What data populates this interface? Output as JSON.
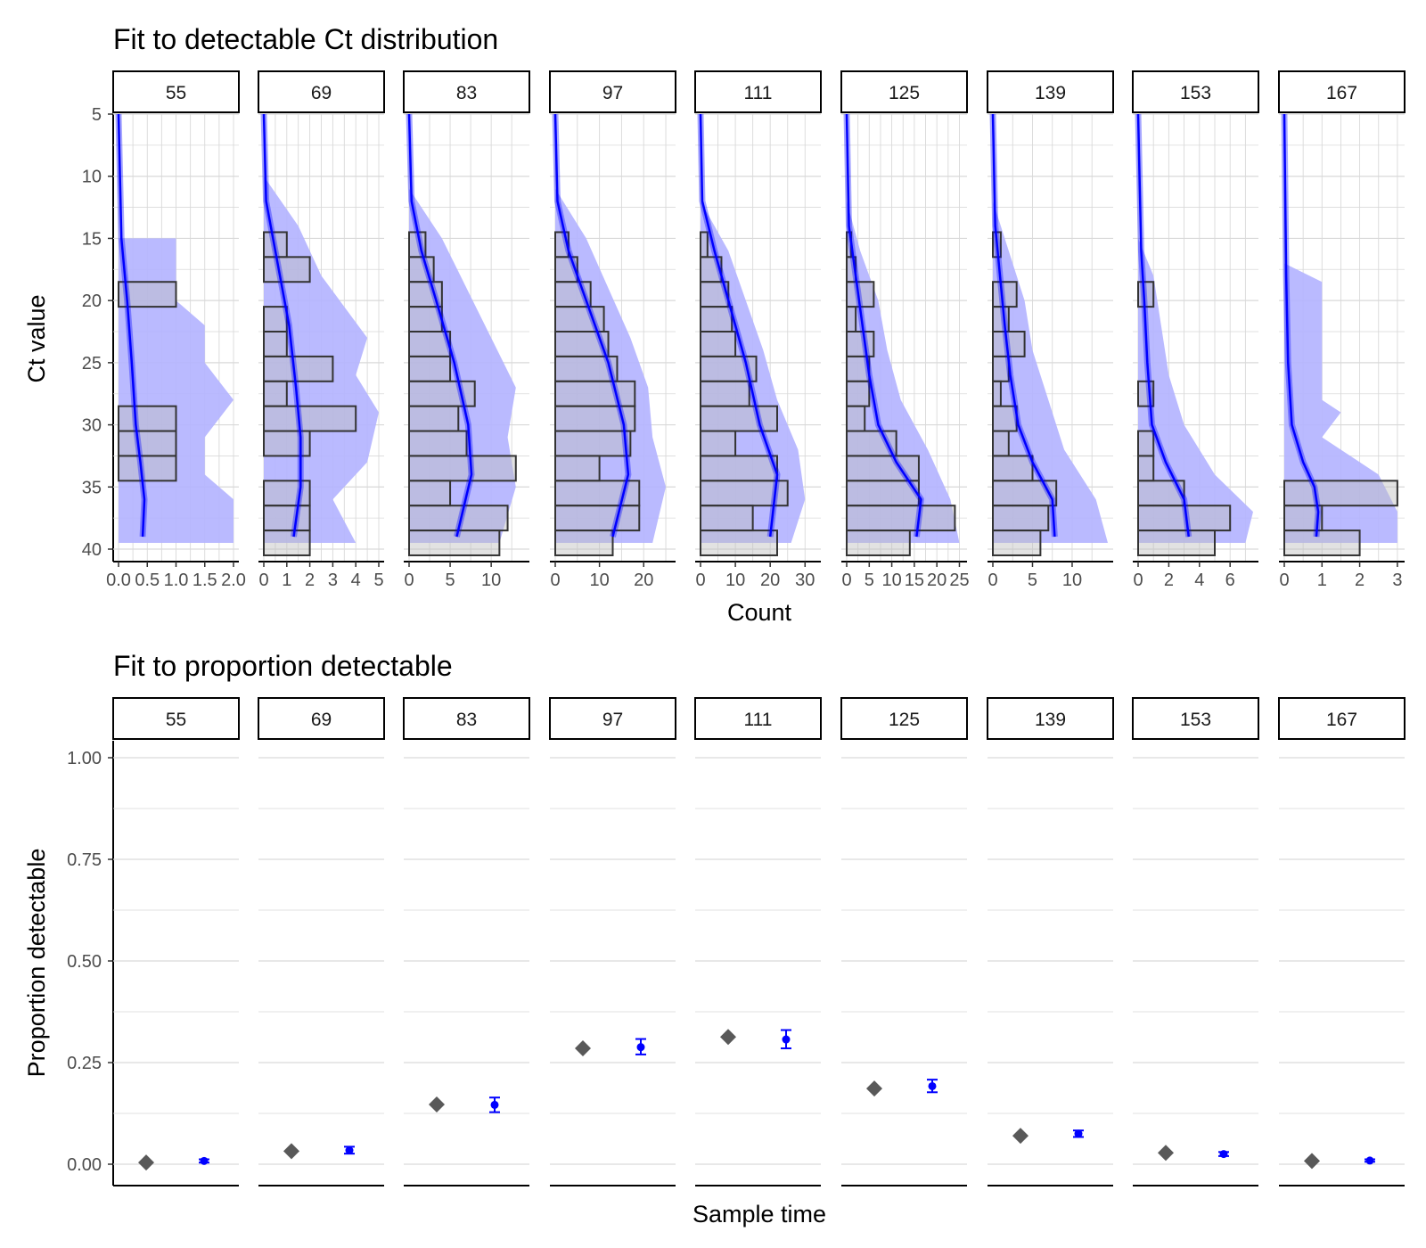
{
  "colors": {
    "fit": "#0000ff",
    "ribbon": "#b3b3ff",
    "hist_fill": "#bebebe",
    "hist_stroke": "#333333",
    "observed": "#595959",
    "grid": "#d9d9d9",
    "axis": "#000000"
  },
  "chart_data": [
    {
      "type": "bar",
      "orientation": "horizontal",
      "title": "Fit to detectable Ct distribution",
      "xlabel": "Count",
      "ylabel": "Ct value",
      "ylim": [
        5,
        40
      ],
      "y_reversed": true,
      "y_ticks": [
        "5",
        "10",
        "15",
        "20",
        "25",
        "30",
        "35",
        "40"
      ],
      "bin_starts": [
        14,
        16,
        18,
        20,
        22,
        24,
        26,
        28,
        30,
        32,
        34,
        36,
        38
      ],
      "facets": [
        {
          "label": "55",
          "xlim": [
            0,
            2
          ],
          "x_ticks": [
            "0.0",
            "0.5",
            "1.0",
            "1.5",
            "2.0"
          ],
          "counts": [
            0,
            0,
            1,
            0,
            0,
            0,
            0,
            1,
            1,
            1,
            0,
            0,
            0
          ],
          "fit": [
            {
              "ct": 5,
              "count": 0
            },
            {
              "ct": 15,
              "count": 0.05
            },
            {
              "ct": 20,
              "count": 0.15
            },
            {
              "ct": 25,
              "count": 0.23
            },
            {
              "ct": 30,
              "count": 0.3
            },
            {
              "ct": 33,
              "count": 0.38
            },
            {
              "ct": 36,
              "count": 0.45
            },
            {
              "ct": 39,
              "count": 0.42
            }
          ],
          "ribbon_upper": [
            {
              "ct": 15,
              "count": 1.0
            },
            {
              "ct": 20,
              "count": 1.0
            },
            {
              "ct": 22,
              "count": 1.5
            },
            {
              "ct": 25,
              "count": 1.5
            },
            {
              "ct": 28,
              "count": 2.0
            },
            {
              "ct": 31,
              "count": 1.5
            },
            {
              "ct": 34,
              "count": 1.5
            },
            {
              "ct": 36,
              "count": 2.0
            },
            {
              "ct": 38,
              "count": 2.0
            },
            {
              "ct": 39.5,
              "count": 2.0
            }
          ]
        },
        {
          "label": "69",
          "xlim": [
            0,
            5
          ],
          "x_ticks": [
            "0",
            "1",
            "2",
            "3",
            "4",
            "5"
          ],
          "counts": [
            1,
            2,
            0,
            1,
            1,
            3,
            1,
            4,
            2,
            0,
            2,
            2,
            2
          ],
          "fit": [
            {
              "ct": 5,
              "count": 0
            },
            {
              "ct": 12,
              "count": 0.1
            },
            {
              "ct": 17,
              "count": 0.6
            },
            {
              "ct": 22,
              "count": 1.1
            },
            {
              "ct": 27,
              "count": 1.4
            },
            {
              "ct": 31,
              "count": 1.6
            },
            {
              "ct": 35,
              "count": 1.6
            },
            {
              "ct": 39,
              "count": 1.3
            }
          ],
          "ribbon_upper": [
            {
              "ct": 10,
              "count": 0
            },
            {
              "ct": 14,
              "count": 1.5
            },
            {
              "ct": 18,
              "count": 2.5
            },
            {
              "ct": 23,
              "count": 4.5
            },
            {
              "ct": 26,
              "count": 4.0
            },
            {
              "ct": 29,
              "count": 5.0
            },
            {
              "ct": 33,
              "count": 4.5
            },
            {
              "ct": 36,
              "count": 3.0
            },
            {
              "ct": 39.5,
              "count": 4.0
            }
          ]
        },
        {
          "label": "83",
          "xlim": [
            0,
            14
          ],
          "x_ticks": [
            "0",
            "5",
            "10"
          ],
          "counts": [
            2,
            3,
            4,
            4,
            5,
            5,
            8,
            6,
            7,
            13,
            5,
            12,
            11
          ],
          "fit": [
            {
              "ct": 5,
              "count": 0
            },
            {
              "ct": 12,
              "count": 0.3
            },
            {
              "ct": 16,
              "count": 1.5
            },
            {
              "ct": 20,
              "count": 3.3
            },
            {
              "ct": 25,
              "count": 5.5
            },
            {
              "ct": 30,
              "count": 7.2
            },
            {
              "ct": 34,
              "count": 7.6
            },
            {
              "ct": 39,
              "count": 5.8
            }
          ],
          "ribbon_upper": [
            {
              "ct": 11,
              "count": 0
            },
            {
              "ct": 15,
              "count": 4
            },
            {
              "ct": 19,
              "count": 7
            },
            {
              "ct": 23,
              "count": 10
            },
            {
              "ct": 27,
              "count": 13
            },
            {
              "ct": 31,
              "count": 12
            },
            {
              "ct": 35,
              "count": 13
            },
            {
              "ct": 39.5,
              "count": 11
            }
          ]
        },
        {
          "label": "97",
          "xlim": [
            0,
            26
          ],
          "x_ticks": [
            "0",
            "10",
            "20"
          ],
          "counts": [
            3,
            5,
            8,
            11,
            12,
            14,
            18,
            18,
            17,
            10,
            19,
            19,
            13
          ],
          "fit": [
            {
              "ct": 5,
              "count": 0
            },
            {
              "ct": 12,
              "count": 0.5
            },
            {
              "ct": 16,
              "count": 3
            },
            {
              "ct": 20,
              "count": 7
            },
            {
              "ct": 25,
              "count": 12
            },
            {
              "ct": 30,
              "count": 15.5
            },
            {
              "ct": 34,
              "count": 16.5
            },
            {
              "ct": 39,
              "count": 13
            }
          ],
          "ribbon_upper": [
            {
              "ct": 11,
              "count": 0
            },
            {
              "ct": 15,
              "count": 7
            },
            {
              "ct": 19,
              "count": 12
            },
            {
              "ct": 23,
              "count": 17
            },
            {
              "ct": 27,
              "count": 21
            },
            {
              "ct": 31,
              "count": 22
            },
            {
              "ct": 35,
              "count": 25
            },
            {
              "ct": 39.5,
              "count": 22
            }
          ]
        },
        {
          "label": "111",
          "xlim": [
            0,
            33
          ],
          "x_ticks": [
            "0",
            "10",
            "20",
            "30"
          ],
          "counts": [
            2,
            6,
            8,
            9,
            10,
            16,
            14,
            22,
            10,
            22,
            25,
            15,
            22
          ],
          "fit": [
            {
              "ct": 5,
              "count": 0
            },
            {
              "ct": 12,
              "count": 0.5
            },
            {
              "ct": 16,
              "count": 4
            },
            {
              "ct": 20,
              "count": 8
            },
            {
              "ct": 25,
              "count": 13
            },
            {
              "ct": 30,
              "count": 17
            },
            {
              "ct": 34,
              "count": 22
            },
            {
              "ct": 39,
              "count": 20
            }
          ],
          "ribbon_upper": [
            {
              "ct": 12,
              "count": 0
            },
            {
              "ct": 16,
              "count": 8
            },
            {
              "ct": 20,
              "count": 13
            },
            {
              "ct": 24,
              "count": 18
            },
            {
              "ct": 28,
              "count": 22
            },
            {
              "ct": 32,
              "count": 28
            },
            {
              "ct": 36,
              "count": 30
            },
            {
              "ct": 39.5,
              "count": 26
            }
          ]
        },
        {
          "label": "125",
          "xlim": [
            0,
            25.5
          ],
          "x_ticks": [
            "0",
            "5",
            "10",
            "15",
            "20",
            "25"
          ],
          "counts": [
            1,
            2,
            6,
            2,
            6,
            5,
            5,
            4,
            11,
            16,
            16,
            24,
            14
          ],
          "fit": [
            {
              "ct": 5,
              "count": 0
            },
            {
              "ct": 14,
              "count": 0.5
            },
            {
              "ct": 18,
              "count": 2
            },
            {
              "ct": 22,
              "count": 3.5
            },
            {
              "ct": 26,
              "count": 5
            },
            {
              "ct": 30,
              "count": 7
            },
            {
              "ct": 33,
              "count": 11
            },
            {
              "ct": 36,
              "count": 16.5
            },
            {
              "ct": 39,
              "count": 15.5
            }
          ],
          "ribbon_upper": [
            {
              "ct": 12,
              "count": 0
            },
            {
              "ct": 16,
              "count": 3
            },
            {
              "ct": 20,
              "count": 7
            },
            {
              "ct": 24,
              "count": 9
            },
            {
              "ct": 28,
              "count": 12
            },
            {
              "ct": 32,
              "count": 18
            },
            {
              "ct": 36,
              "count": 23
            },
            {
              "ct": 39.5,
              "count": 25
            }
          ]
        },
        {
          "label": "139",
          "xlim": [
            0,
            14.5
          ],
          "x_ticks": [
            "0",
            "5",
            "10"
          ],
          "counts": [
            1,
            0,
            3,
            2,
            4,
            2,
            1,
            3,
            2,
            5,
            8,
            7,
            6
          ],
          "fit": [
            {
              "ct": 5,
              "count": 0
            },
            {
              "ct": 14,
              "count": 0.3
            },
            {
              "ct": 18,
              "count": 0.9
            },
            {
              "ct": 22,
              "count": 1.5
            },
            {
              "ct": 26,
              "count": 2.2
            },
            {
              "ct": 30,
              "count": 3.2
            },
            {
              "ct": 33,
              "count": 5
            },
            {
              "ct": 36,
              "count": 7.5
            },
            {
              "ct": 39,
              "count": 7.8
            }
          ],
          "ribbon_upper": [
            {
              "ct": 12,
              "count": 0
            },
            {
              "ct": 16,
              "count": 2
            },
            {
              "ct": 20,
              "count": 4
            },
            {
              "ct": 24,
              "count": 5
            },
            {
              "ct": 28,
              "count": 7
            },
            {
              "ct": 32,
              "count": 9
            },
            {
              "ct": 36,
              "count": 13
            },
            {
              "ct": 39.5,
              "count": 14.5
            }
          ]
        },
        {
          "label": "153",
          "xlim": [
            0,
            7.5
          ],
          "x_ticks": [
            "0",
            "2",
            "4",
            "6"
          ],
          "counts": [
            0,
            0,
            1,
            0,
            0,
            0,
            1,
            0,
            1,
            1,
            3,
            6,
            5
          ],
          "fit": [
            {
              "ct": 5,
              "count": 0
            },
            {
              "ct": 16,
              "count": 0.2
            },
            {
              "ct": 20,
              "count": 0.4
            },
            {
              "ct": 25,
              "count": 0.6
            },
            {
              "ct": 30,
              "count": 0.9
            },
            {
              "ct": 33,
              "count": 1.8
            },
            {
              "ct": 36,
              "count": 3.0
            },
            {
              "ct": 39,
              "count": 3.3
            }
          ],
          "ribbon_upper": [
            {
              "ct": 15,
              "count": 0
            },
            {
              "ct": 18,
              "count": 1.0
            },
            {
              "ct": 22,
              "count": 1.5
            },
            {
              "ct": 26,
              "count": 2
            },
            {
              "ct": 30,
              "count": 3
            },
            {
              "ct": 34,
              "count": 5
            },
            {
              "ct": 37,
              "count": 7.5
            },
            {
              "ct": 39.5,
              "count": 7
            }
          ]
        },
        {
          "label": "167",
          "xlim": [
            0,
            3.05
          ],
          "x_ticks": [
            "0",
            "1",
            "2",
            "3"
          ],
          "counts": [
            0,
            0,
            0,
            0,
            0,
            0,
            0,
            0,
            0,
            0,
            3,
            1,
            2
          ],
          "fit": [
            {
              "ct": 5,
              "count": 0
            },
            {
              "ct": 18,
              "count": 0.05
            },
            {
              "ct": 25,
              "count": 0.1
            },
            {
              "ct": 30,
              "count": 0.2
            },
            {
              "ct": 33,
              "count": 0.5
            },
            {
              "ct": 35,
              "count": 0.8
            },
            {
              "ct": 37,
              "count": 0.9
            },
            {
              "ct": 39,
              "count": 0.85
            }
          ],
          "ribbon_upper": [
            {
              "ct": 17,
              "count": 0
            },
            {
              "ct": 18.5,
              "count": 1.0
            },
            {
              "ct": 20,
              "count": 1.0
            },
            {
              "ct": 25,
              "count": 1
            },
            {
              "ct": 28,
              "count": 1
            },
            {
              "ct": 29,
              "count": 1.5
            },
            {
              "ct": 31,
              "count": 1
            },
            {
              "ct": 34,
              "count": 2.5
            },
            {
              "ct": 37,
              "count": 3
            },
            {
              "ct": 39.5,
              "count": 3
            }
          ]
        }
      ]
    },
    {
      "type": "scatter",
      "title": "Fit to proportion detectable",
      "xlabel": "Sample time",
      "ylabel": "Proportion detectable",
      "ylim": [
        0,
        1
      ],
      "y_ticks": [
        "0.00",
        "0.25",
        "0.50",
        "0.75",
        "1.00"
      ],
      "facets": [
        {
          "label": "55",
          "observed": 0.004,
          "fitted": 0.008,
          "lower": 0.004,
          "upper": 0.012
        },
        {
          "label": "69",
          "observed": 0.032,
          "fitted": 0.034,
          "lower": 0.026,
          "upper": 0.043
        },
        {
          "label": "83",
          "observed": 0.147,
          "fitted": 0.146,
          "lower": 0.128,
          "upper": 0.164
        },
        {
          "label": "97",
          "observed": 0.285,
          "fitted": 0.288,
          "lower": 0.27,
          "upper": 0.308
        },
        {
          "label": "111",
          "observed": 0.313,
          "fitted": 0.307,
          "lower": 0.285,
          "upper": 0.33
        },
        {
          "label": "125",
          "observed": 0.186,
          "fitted": 0.192,
          "lower": 0.177,
          "upper": 0.208
        },
        {
          "label": "139",
          "observed": 0.07,
          "fitted": 0.075,
          "lower": 0.067,
          "upper": 0.083
        },
        {
          "label": "153",
          "observed": 0.028,
          "fitted": 0.025,
          "lower": 0.02,
          "upper": 0.03
        },
        {
          "label": "167",
          "observed": 0.008,
          "fitted": 0.009,
          "lower": 0.006,
          "upper": 0.012
        }
      ]
    }
  ]
}
